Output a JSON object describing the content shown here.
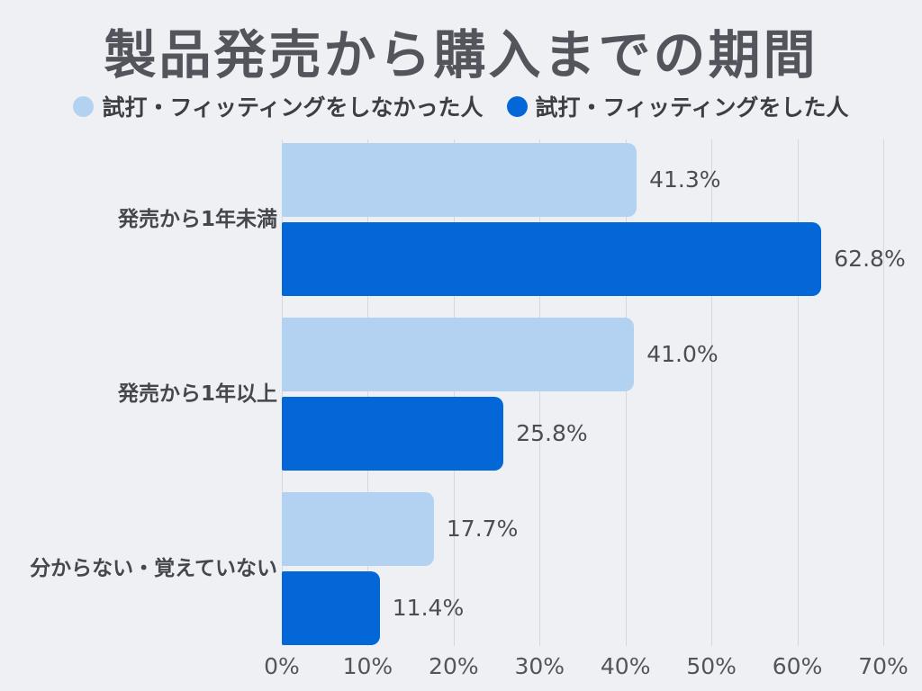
{
  "title": "製品発売から購入までの期間",
  "colors": {
    "background": "#eef0f4",
    "bar_light": "#b3d1f1",
    "bar_dark": "#0467d8",
    "grid": "#d6d8dd",
    "title_text": "#54555c",
    "category_text": "#46474d",
    "legend_text": "#3d3e44",
    "value_text": "#4c4d53",
    "tick_text": "#54555b"
  },
  "legend": [
    {
      "label": "試打・フィッティングをしなかった人",
      "color": "#b3d1f1"
    },
    {
      "label": "試打・フィッティングをした人",
      "color": "#0467d8"
    }
  ],
  "chart_data": {
    "type": "bar",
    "orientation": "horizontal",
    "title": "製品発売から購入までの期間",
    "categories": [
      "発売から1年未満",
      "発売から1年以上",
      "分からない・覚えていない"
    ],
    "series": [
      {
        "name": "試打・フィッティングをしなかった人",
        "color": "#b3d1f1",
        "values": [
          41.3,
          41.0,
          17.7
        ],
        "labels": [
          "41.3%",
          "41.0%",
          "17.7%"
        ]
      },
      {
        "name": "試打・フィッティングをした人",
        "color": "#0467d8",
        "values": [
          62.8,
          25.8,
          11.4
        ],
        "labels": [
          "62.8%",
          "25.8%",
          "11.4%"
        ]
      }
    ],
    "xlabel": "",
    "ylabel": "",
    "xlim": [
      0,
      70
    ],
    "x_ticks": [
      0,
      10,
      20,
      30,
      40,
      50,
      60,
      70
    ],
    "x_tick_labels": [
      "0%",
      "10%",
      "20%",
      "30%",
      "40%",
      "50%",
      "60%",
      "70%"
    ],
    "grid": true,
    "legend_position": "top"
  }
}
